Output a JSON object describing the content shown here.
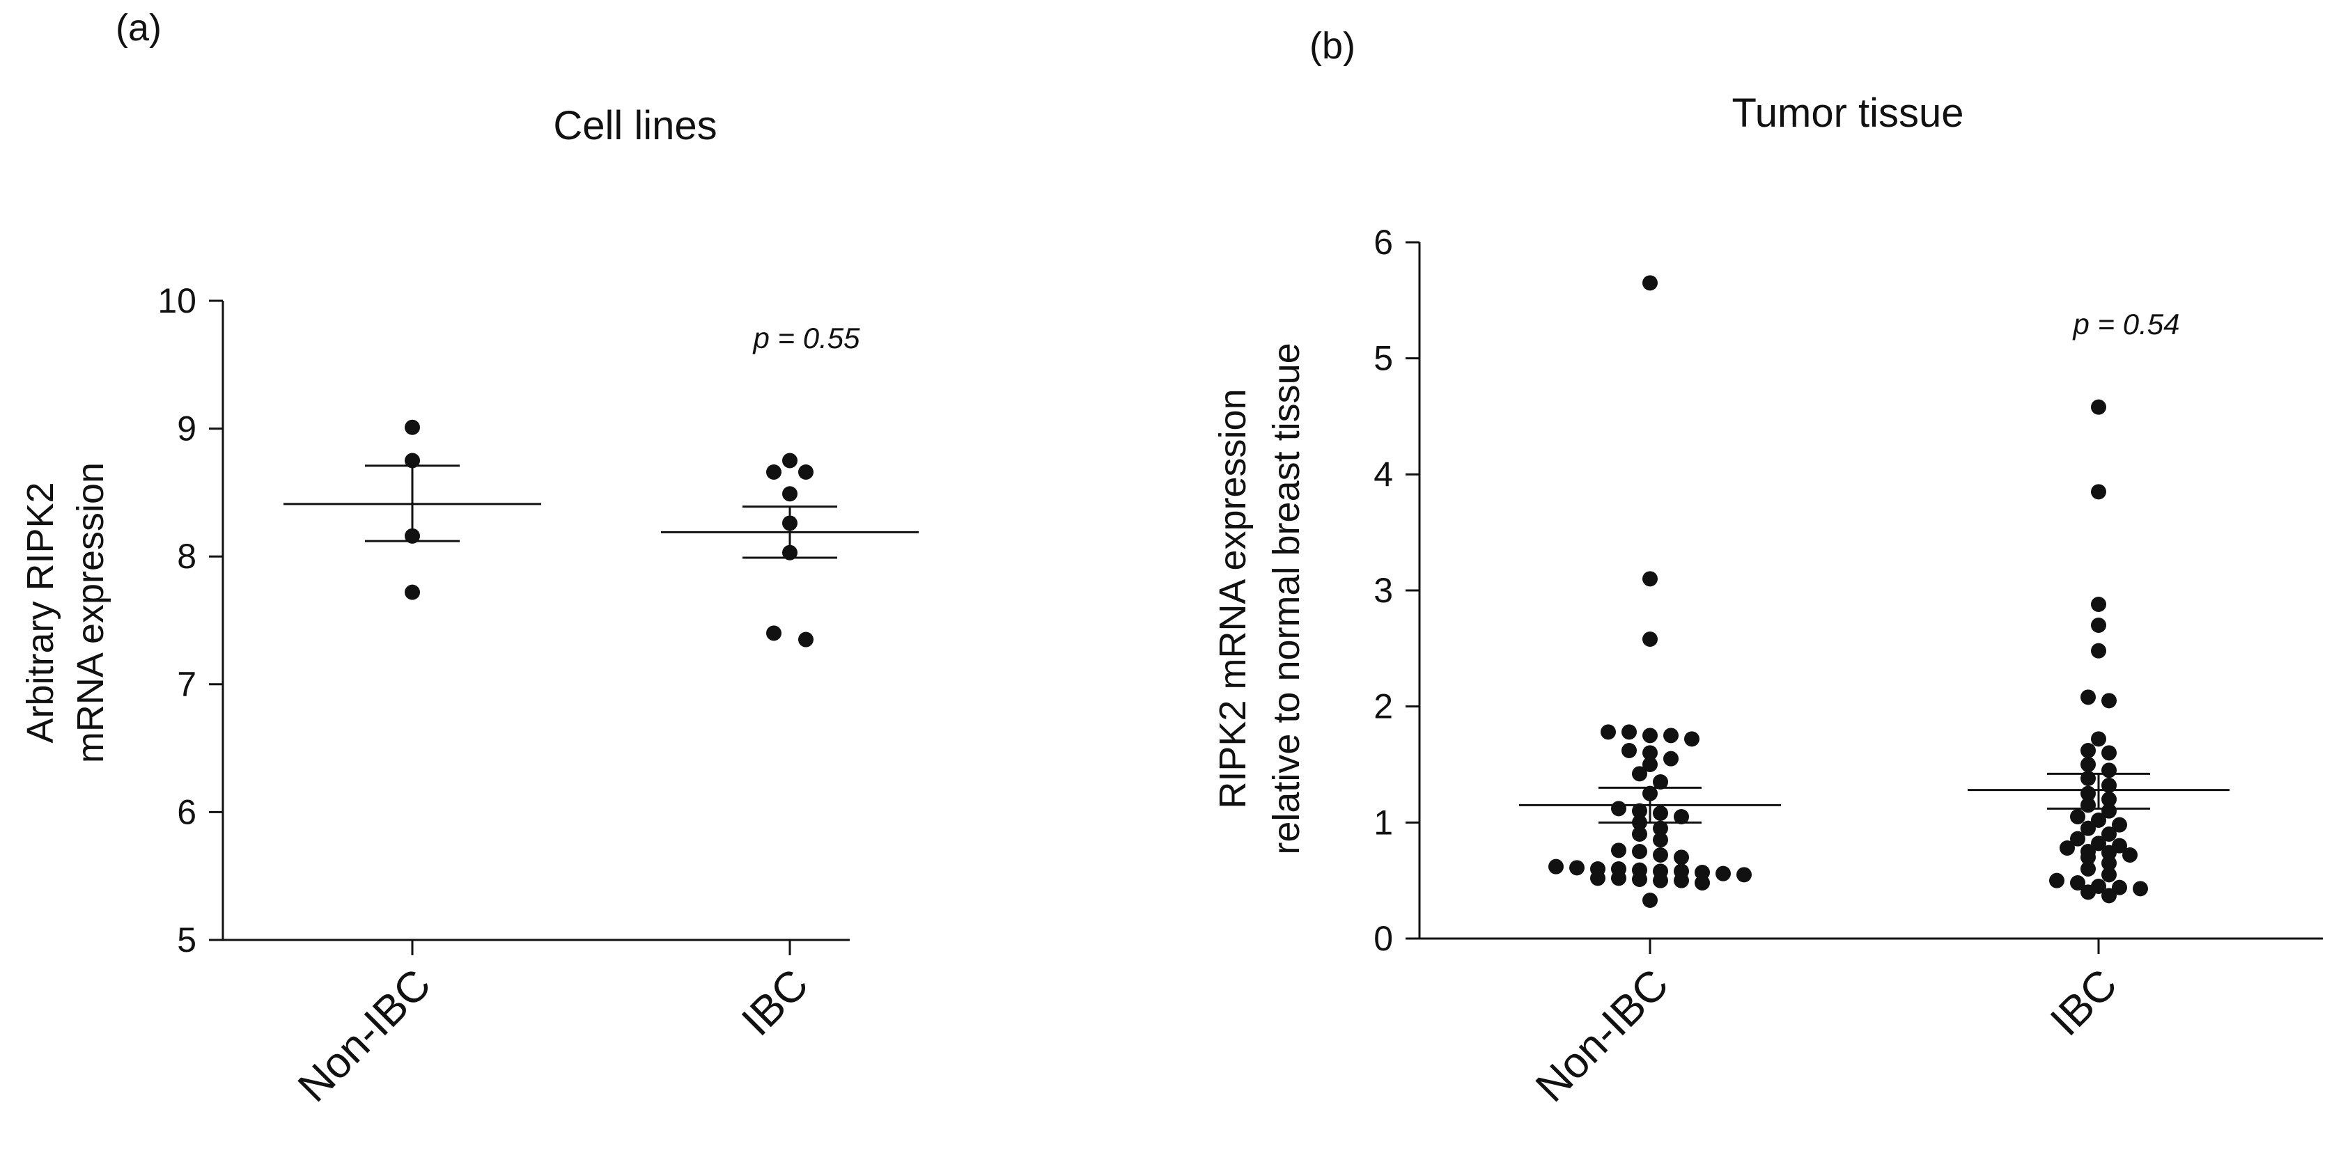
{
  "chart_data": [
    {
      "panel_label": "(a)",
      "type": "scatter",
      "title": "Cell lines",
      "ylabel_lines": [
        "Arbitrary RIPK2",
        "mRNA expression"
      ],
      "categories": [
        "Non-IBC",
        "IBC"
      ],
      "ylim": [
        5,
        10
      ],
      "yticks": [
        "5",
        "6",
        "7",
        "8",
        "9",
        "10"
      ],
      "p_value_text": "p = 0.55",
      "series": [
        {
          "name": "Non-IBC",
          "mean": 8.41,
          "sem_upper": 8.71,
          "sem_lower": 8.12,
          "points": [
            9.01,
            8.75,
            8.16,
            7.72
          ]
        },
        {
          "name": "IBC",
          "mean": 8.19,
          "sem_upper": 8.39,
          "sem_lower": 7.99,
          "points": [
            8.75,
            8.66,
            8.66,
            8.49,
            8.26,
            8.03,
            7.4,
            7.35
          ]
        }
      ]
    },
    {
      "panel_label": "(b)",
      "type": "scatter",
      "title": "Tumor tissue",
      "ylabel_lines": [
        "RIPK2 mRNA expression",
        "relative to normal breast tissue"
      ],
      "categories": [
        "Non-IBC",
        "IBC"
      ],
      "ylim": [
        0,
        6
      ],
      "yticks": [
        "0",
        "1",
        "2",
        "3",
        "4",
        "5",
        "6"
      ],
      "p_value_text": "p = 0.54",
      "series": [
        {
          "name": "Non-IBC",
          "mean": 1.15,
          "sem_upper": 1.3,
          "sem_lower": 1.0,
          "points": [
            5.65,
            3.1,
            2.58,
            1.78,
            1.78,
            1.75,
            1.75,
            1.72,
            1.62,
            1.6,
            1.55,
            1.5,
            1.42,
            1.35,
            1.25,
            1.12,
            1.1,
            1.08,
            1.05,
            1.0,
            0.95,
            0.9,
            0.85,
            0.76,
            0.75,
            0.72,
            0.7,
            0.62,
            0.61,
            0.6,
            0.6,
            0.59,
            0.58,
            0.58,
            0.57,
            0.56,
            0.55,
            0.52,
            0.52,
            0.51,
            0.5,
            0.5,
            0.48,
            0.33
          ]
        },
        {
          "name": "IBC",
          "mean": 1.28,
          "sem_upper": 1.42,
          "sem_lower": 1.12,
          "points": [
            4.58,
            3.85,
            2.88,
            2.7,
            2.48,
            2.08,
            2.05,
            1.72,
            1.62,
            1.6,
            1.5,
            1.45,
            1.38,
            1.32,
            1.25,
            1.2,
            1.15,
            1.1,
            1.05,
            1.02,
            0.98,
            0.95,
            0.9,
            0.86,
            0.82,
            0.8,
            0.78,
            0.75,
            0.74,
            0.72,
            0.7,
            0.65,
            0.6,
            0.55,
            0.5,
            0.48,
            0.45,
            0.44,
            0.43,
            0.4,
            0.37
          ]
        }
      ]
    }
  ]
}
